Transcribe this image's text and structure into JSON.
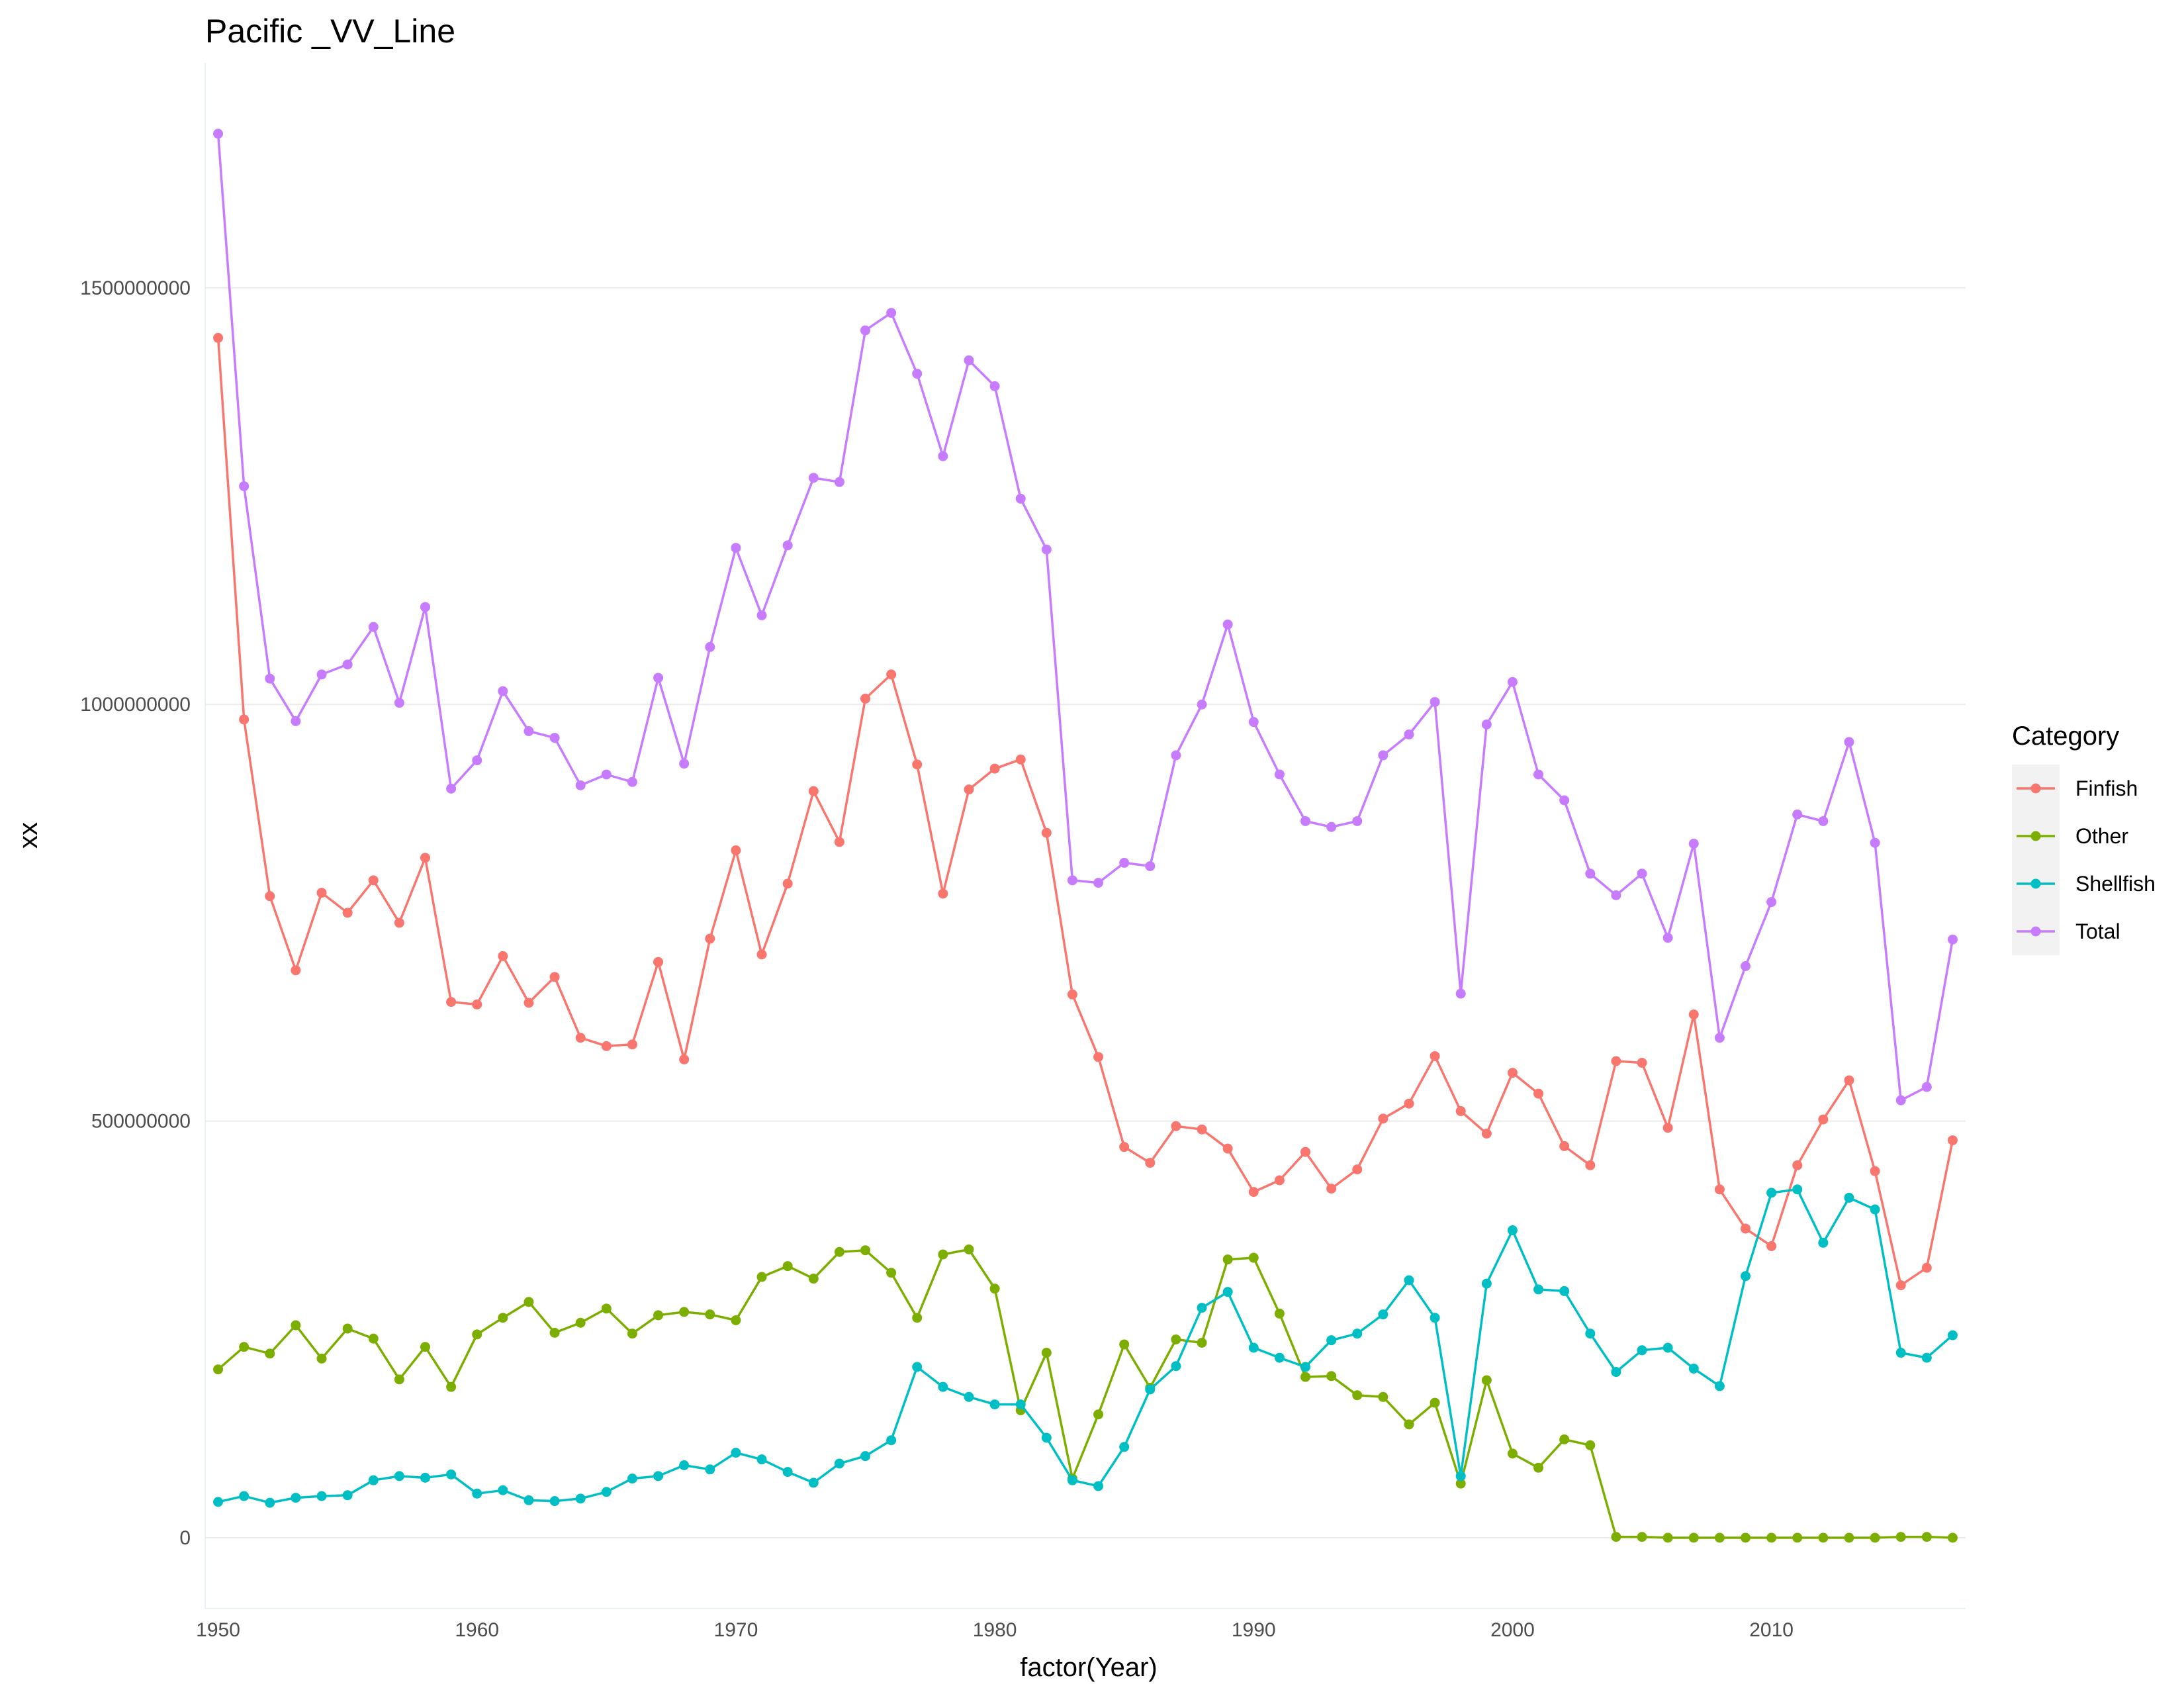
{
  "chart_data": {
    "type": "line",
    "title": "Pacific _VV_Line",
    "xlabel": "factor(Year)",
    "ylabel": "xx",
    "x": [
      1950,
      1951,
      1952,
      1953,
      1954,
      1955,
      1956,
      1957,
      1958,
      1959,
      1960,
      1961,
      1962,
      1963,
      1964,
      1965,
      1966,
      1967,
      1968,
      1969,
      1970,
      1971,
      1972,
      1973,
      1974,
      1975,
      1976,
      1977,
      1978,
      1979,
      1980,
      1981,
      1982,
      1983,
      1984,
      1985,
      1986,
      1987,
      1988,
      1989,
      1990,
      1991,
      1992,
      1993,
      1994,
      1995,
      1996,
      1997,
      1998,
      1999,
      2000,
      2001,
      2002,
      2003,
      2004,
      2005,
      2006,
      2007,
      2008,
      2009,
      2010,
      2011,
      2012,
      2013,
      2014,
      2015,
      2016,
      2017
    ],
    "x_ticks": [
      1950,
      1960,
      1970,
      1980,
      1990,
      2000,
      2010
    ],
    "x_tick_labels": [
      "1950",
      "1960",
      "1970",
      "1980",
      "1990",
      "2000",
      "2010"
    ],
    "xlim": [
      1949.5,
      2017.5
    ],
    "y_ticks": [
      0,
      500000000,
      1000000000,
      1500000000
    ],
    "y_tick_labels": [
      "0",
      "500000000",
      "1000000000",
      "1500000000"
    ],
    "ylim": [
      -85000000,
      1770000000
    ],
    "grid": true,
    "legend": {
      "title": "Category",
      "position": "right"
    },
    "series": [
      {
        "name": "Finfish",
        "color": "#F8766D",
        "values": [
          1440000000,
          982000000,
          770000000,
          681000000,
          774000000,
          750000000,
          789000000,
          738000000,
          816000000,
          643000000,
          640000000,
          698000000,
          642000000,
          673000000,
          600000000,
          590000000,
          592000000,
          691000000,
          574000000,
          719000000,
          825000000,
          700000000,
          785000000,
          896000000,
          835000000,
          1007000000,
          1036000000,
          928000000,
          773000000,
          898000000,
          923000000,
          934000000,
          846000000,
          652000000,
          577000000,
          469000000,
          450000000,
          494000000,
          490000000,
          467000000,
          415000000,
          429000000,
          463000000,
          419000000,
          442000000,
          503000000,
          521000000,
          578000000,
          512000000,
          485000000,
          558000000,
          533000000,
          470000000,
          447000000,
          572000000,
          570000000,
          492000000,
          628000000,
          418000000,
          371000000,
          350000000,
          447000000,
          502000000,
          549000000,
          440000000,
          303000000,
          324000000,
          477000000
        ]
      },
      {
        "name": "Other",
        "color": "#7CAE00",
        "values": [
          202000000,
          229000000,
          221000000,
          255000000,
          215000000,
          251000000,
          239000000,
          190000000,
          229000000,
          181000000,
          244000000,
          264000000,
          283000000,
          246000000,
          258000000,
          275000000,
          245000000,
          267000000,
          271000000,
          268000000,
          261000000,
          313000000,
          326000000,
          311000000,
          343000000,
          345000000,
          318000000,
          264000000,
          340000000,
          346000000,
          299000000,
          153000000,
          222000000,
          71000000,
          148000000,
          232000000,
          180000000,
          238000000,
          234000000,
          334000000,
          336000000,
          269000000,
          193000000,
          194000000,
          171000000,
          169000000,
          136000000,
          162000000,
          65000000,
          189000000,
          101000000,
          84000000,
          118000000,
          111000000,
          1000000,
          1000000,
          0,
          0,
          0,
          0,
          0,
          0,
          0,
          0,
          0,
          1000000,
          1000000,
          0
        ]
      },
      {
        "name": "Shellfish",
        "color": "#00BFC4",
        "values": [
          43000000,
          50000000,
          42000000,
          48000000,
          50000000,
          51000000,
          69000000,
          74000000,
          72000000,
          76000000,
          53000000,
          57000000,
          45000000,
          44000000,
          47000000,
          55000000,
          71000000,
          74000000,
          87000000,
          82000000,
          102000000,
          94000000,
          79000000,
          66000000,
          89000000,
          98000000,
          117000000,
          205000000,
          181000000,
          169000000,
          160000000,
          160000000,
          120000000,
          69000000,
          62000000,
          109000000,
          178000000,
          206000000,
          276000000,
          295000000,
          228000000,
          216000000,
          205000000,
          237000000,
          245000000,
          268000000,
          309000000,
          264000000,
          74000000,
          305000000,
          369000000,
          298000000,
          296000000,
          245000000,
          199000000,
          225000000,
          228000000,
          203000000,
          182000000,
          314000000,
          414000000,
          418000000,
          354000000,
          408000000,
          394000000,
          222000000,
          216000000,
          243000000
        ]
      },
      {
        "name": "Total",
        "color": "#C77CFF",
        "values": [
          1685000000,
          1262000000,
          1031000000,
          980000000,
          1036000000,
          1048000000,
          1093000000,
          1002000000,
          1117000000,
          899000000,
          933000000,
          1016000000,
          968000000,
          960000000,
          903000000,
          916000000,
          907000000,
          1032000000,
          929000000,
          1069000000,
          1188000000,
          1107000000,
          1191000000,
          1272000000,
          1267000000,
          1449000000,
          1470000000,
          1397000000,
          1298000000,
          1413000000,
          1382000000,
          1247000000,
          1186000000,
          789000000,
          786000000,
          810000000,
          806000000,
          939000000,
          1000000000,
          1096000000,
          979000000,
          916000000,
          860000000,
          853000000,
          860000000,
          939000000,
          964000000,
          1003000000,
          653000000,
          976000000,
          1027000000,
          916000000,
          885000000,
          797000000,
          771000000,
          797000000,
          720000000,
          833000000,
          600000000,
          686000000,
          763000000,
          868000000,
          860000000,
          955000000,
          834000000,
          525000000,
          541000000,
          718000000
        ]
      }
    ]
  }
}
